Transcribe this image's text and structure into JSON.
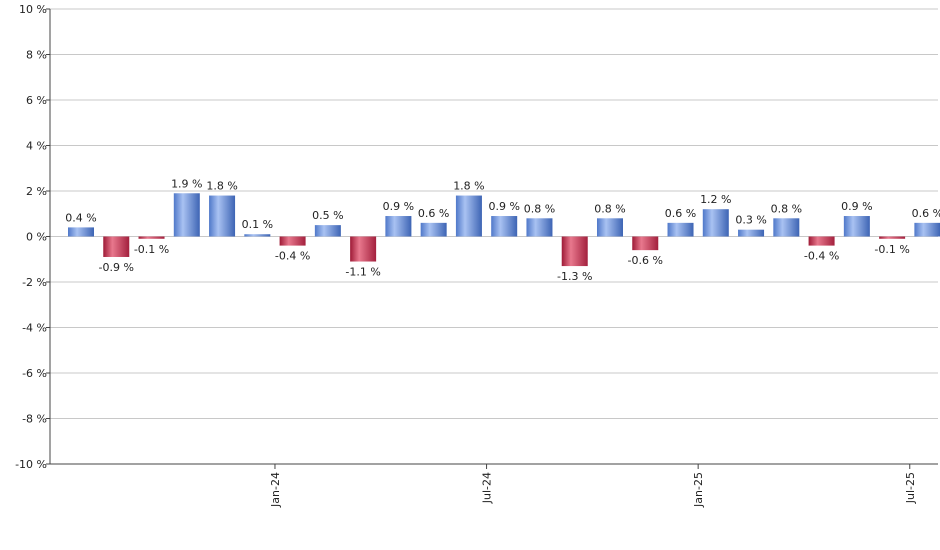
{
  "chart_data": {
    "type": "bar",
    "title": "",
    "xlabel": "",
    "ylabel": "",
    "ylim": [
      -10,
      10
    ],
    "y_ticks": [
      10,
      8,
      6,
      4,
      2,
      0,
      -2,
      -4,
      -6,
      -8,
      -10
    ],
    "y_tick_labels": [
      "10 %",
      "8 %",
      "6 %",
      "4 %",
      "2 %",
      "0 %",
      "-2 %",
      "-4 %",
      "-6 %",
      "-8 %",
      "-10 %"
    ],
    "values": [
      0.4,
      -0.9,
      -0.1,
      1.9,
      1.8,
      0.1,
      -0.4,
      0.5,
      -1.1,
      0.9,
      0.6,
      1.8,
      0.9,
      0.8,
      -1.3,
      0.8,
      -0.6,
      0.6,
      1.2,
      0.3,
      0.8,
      -0.4,
      0.9,
      -0.1,
      0.6
    ],
    "value_labels": [
      "0.4 %",
      "-0.9 %",
      "-0.1 %",
      "1.9 %",
      "1.8 %",
      "0.1 %",
      "-0.4 %",
      "0.5 %",
      "-1.1 %",
      "0.9 %",
      "0.6 %",
      "1.8 %",
      "0.9 %",
      "0.8 %",
      "-1.3 %",
      "0.8 %",
      "-0.6 %",
      "0.6 %",
      "1.2 %",
      "0.3 %",
      "0.8 %",
      "-0.4 %",
      "0.9 %",
      "-0.1 %",
      "0.6 %"
    ],
    "x_tick_labels": [
      {
        "label": "Jan-24",
        "after_bar_index": 5
      },
      {
        "label": "Jul-24",
        "after_bar_index": 11
      },
      {
        "label": "Jan-25",
        "after_bar_index": 17
      },
      {
        "label": "Jul-25",
        "after_bar_index": 23
      }
    ],
    "grid": true,
    "colors": {
      "positive": "#7b9fe0",
      "negative": "#c8314f"
    }
  }
}
